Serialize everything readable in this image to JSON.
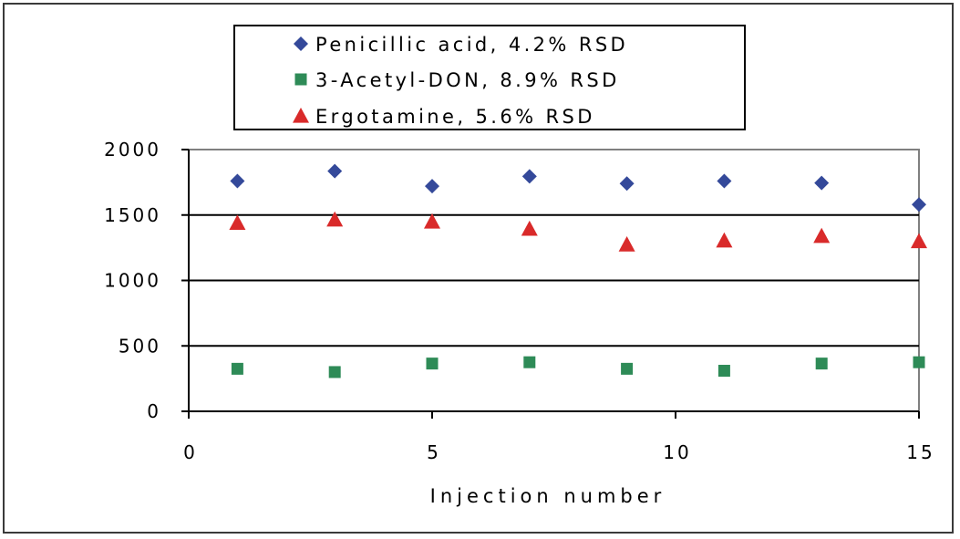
{
  "chart_data": {
    "type": "scatter",
    "title": "",
    "xlabel": "Injection number",
    "ylabel": "",
    "xlim": [
      0,
      15
    ],
    "ylim": [
      0,
      2000
    ],
    "x_ticks": [
      "0",
      "5",
      "10",
      "15"
    ],
    "y_ticks": [
      "0",
      "500",
      "1000",
      "1500",
      "2000"
    ],
    "grid": "horizontal",
    "legend_position": "top-center",
    "series": [
      {
        "name": "Penicillic acid, 4.2% RSD",
        "marker": "diamond",
        "color": "#34499a",
        "x": [
          1,
          3,
          5,
          7,
          9,
          11,
          13,
          15
        ],
        "y": [
          1760,
          1835,
          1720,
          1795,
          1740,
          1760,
          1745,
          1580
        ]
      },
      {
        "name": "3-Acetyl-DON, 8.9% RSD",
        "marker": "square",
        "color": "#2e8b57",
        "x": [
          1,
          3,
          5,
          7,
          9,
          11,
          13,
          15
        ],
        "y": [
          325,
          300,
          365,
          375,
          325,
          310,
          365,
          375
        ]
      },
      {
        "name": "Ergotamine, 5.6% RSD",
        "marker": "triangle",
        "color": "#d92a2a",
        "x": [
          1,
          3,
          5,
          7,
          9,
          11,
          13,
          15
        ],
        "y": [
          1440,
          1465,
          1450,
          1395,
          1275,
          1305,
          1340,
          1300
        ]
      }
    ]
  }
}
